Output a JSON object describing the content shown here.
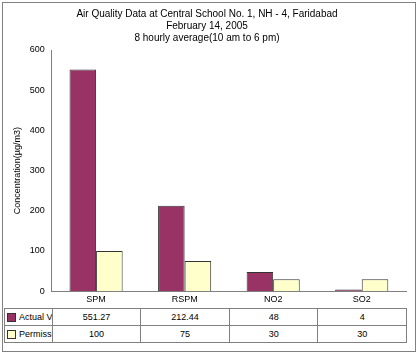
{
  "chart_data": {
    "type": "bar",
    "title": [
      "Air Quality Data at Central School No. 1, NH - 4, Faridabad",
      "February 14, 2005",
      "8 hourly average(10 am to 6 pm)"
    ],
    "y_label": "Concentration(µg/m3)",
    "categories": [
      "SPM",
      "RSPM",
      "NO2",
      "SO2"
    ],
    "series": [
      {
        "name": "Actual Value",
        "color": "#993366",
        "values": [
          551.27,
          212.44,
          48,
          4
        ]
      },
      {
        "name": "Permissible Limit",
        "color": "#FFFFCC",
        "values": [
          100,
          75,
          30,
          30
        ]
      }
    ],
    "ylim": [
      0,
      600
    ],
    "yticks": [
      0,
      100,
      200,
      300,
      400,
      500,
      600
    ],
    "grid": false
  }
}
